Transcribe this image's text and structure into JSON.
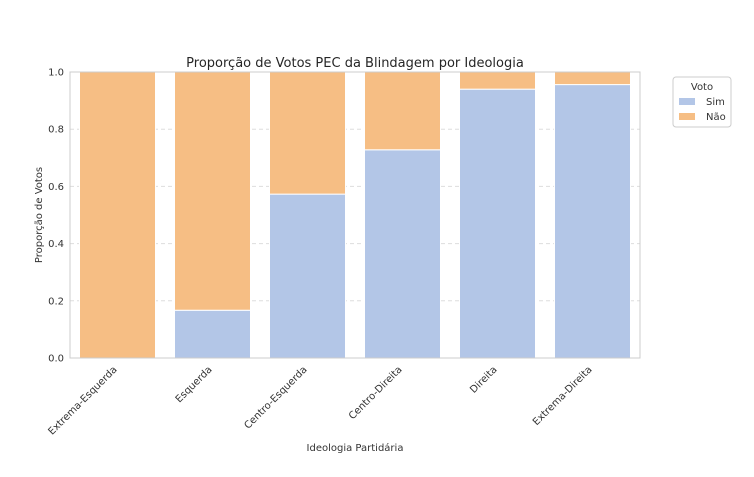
{
  "chart_data": {
    "type": "bar",
    "stacked": true,
    "title": "Proporção de Votos PEC da Blindagem por Ideologia",
    "xlabel": "Ideologia Partidária",
    "ylabel": "Proporção de Votos",
    "ylim": [
      0,
      1.0
    ],
    "yticks": [
      "0.0",
      "0.2",
      "0.4",
      "0.6",
      "0.8",
      "1.0"
    ],
    "categories": [
      "Extrema-Esquerda",
      "Esquerda",
      "Centro-Esquerda",
      "Centro-Direita",
      "Direita",
      "Extrema-Direita"
    ],
    "series": [
      {
        "name": "Sim",
        "color": "#b3c6e7",
        "values": [
          0.0,
          0.167,
          0.573,
          0.728,
          0.94,
          0.956
        ]
      },
      {
        "name": "Não",
        "color": "#f6be84",
        "values": [
          1.0,
          0.833,
          0.427,
          0.272,
          0.06,
          0.044
        ]
      }
    ],
    "grid": true,
    "legend": {
      "title": "Voto",
      "position": "upper right, outside"
    }
  }
}
